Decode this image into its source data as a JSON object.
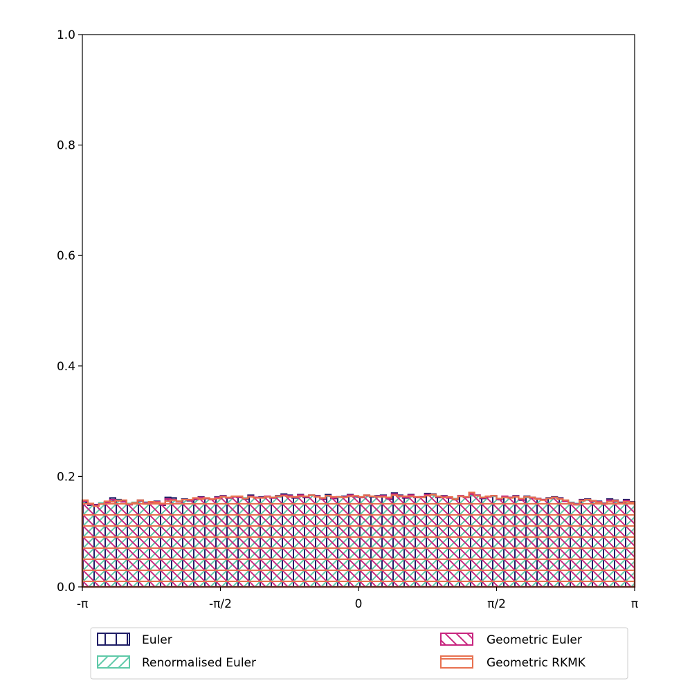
{
  "chart_data": {
    "type": "histogram",
    "title": "",
    "xlabel": "",
    "ylabel": "",
    "xlim": [
      -3.14159,
      3.14159
    ],
    "ylim": [
      0,
      1.0
    ],
    "grid": false,
    "xticks": [
      {
        "value": -3.14159,
        "label": "-π"
      },
      {
        "value": -1.5708,
        "label": "-π/2"
      },
      {
        "value": 0,
        "label": "0"
      },
      {
        "value": 1.5708,
        "label": "π/2"
      },
      {
        "value": 3.14159,
        "label": "π"
      }
    ],
    "yticks": [
      {
        "value": 0.0,
        "label": "0.0"
      },
      {
        "value": 0.2,
        "label": "0.2"
      },
      {
        "value": 0.4,
        "label": "0.4"
      },
      {
        "value": 0.6,
        "label": "0.6"
      },
      {
        "value": 0.8,
        "label": "0.8"
      },
      {
        "value": 1.0,
        "label": "1.0"
      }
    ],
    "bins": 100,
    "legend": {
      "placement": "below plot",
      "columns": 2
    },
    "series": [
      {
        "name": "Euler",
        "color": "#1f1d66",
        "hatch": "vertical",
        "values": [
          0.153,
          0.148,
          0.149,
          0.151,
          0.153,
          0.161,
          0.158,
          0.155,
          0.149,
          0.151,
          0.157,
          0.153,
          0.152,
          0.155,
          0.148,
          0.162,
          0.161,
          0.155,
          0.159,
          0.156,
          0.158,
          0.163,
          0.16,
          0.158,
          0.163,
          0.165,
          0.161,
          0.163,
          0.162,
          0.159,
          0.166,
          0.162,
          0.163,
          0.164,
          0.161,
          0.165,
          0.168,
          0.166,
          0.161,
          0.167,
          0.162,
          0.166,
          0.165,
          0.159,
          0.167,
          0.16,
          0.163,
          0.164,
          0.167,
          0.163,
          0.162,
          0.166,
          0.163,
          0.165,
          0.166,
          0.159,
          0.17,
          0.166,
          0.161,
          0.167,
          0.162,
          0.163,
          0.169,
          0.168,
          0.162,
          0.165,
          0.161,
          0.158,
          0.165,
          0.162,
          0.166,
          0.166,
          0.16,
          0.163,
          0.165,
          0.158,
          0.164,
          0.162,
          0.165,
          0.157,
          0.164,
          0.162,
          0.16,
          0.158,
          0.161,
          0.163,
          0.161,
          0.155,
          0.152,
          0.149,
          0.158,
          0.159,
          0.156,
          0.155,
          0.151,
          0.159,
          0.157,
          0.153,
          0.158,
          0.154
        ]
      },
      {
        "name": "Renormalised Euler",
        "color": "#5ec9a8",
        "hatch": "diagonal-forward",
        "values": [
          0.156,
          0.15,
          0.147,
          0.152,
          0.154,
          0.156,
          0.157,
          0.154,
          0.151,
          0.153,
          0.155,
          0.153,
          0.151,
          0.154,
          0.15,
          0.157,
          0.158,
          0.154,
          0.158,
          0.157,
          0.16,
          0.161,
          0.16,
          0.159,
          0.162,
          0.164,
          0.161,
          0.163,
          0.163,
          0.161,
          0.163,
          0.162,
          0.162,
          0.164,
          0.162,
          0.163,
          0.165,
          0.165,
          0.163,
          0.165,
          0.164,
          0.166,
          0.164,
          0.161,
          0.164,
          0.162,
          0.162,
          0.163,
          0.165,
          0.164,
          0.163,
          0.165,
          0.164,
          0.164,
          0.165,
          0.162,
          0.167,
          0.165,
          0.163,
          0.165,
          0.163,
          0.162,
          0.166,
          0.166,
          0.163,
          0.164,
          0.162,
          0.16,
          0.164,
          0.163,
          0.165,
          0.166,
          0.162,
          0.163,
          0.164,
          0.16,
          0.163,
          0.162,
          0.163,
          0.159,
          0.162,
          0.161,
          0.16,
          0.158,
          0.16,
          0.161,
          0.16,
          0.156,
          0.153,
          0.151,
          0.156,
          0.157,
          0.155,
          0.154,
          0.152,
          0.155,
          0.154,
          0.152,
          0.155,
          0.153
        ]
      },
      {
        "name": "Geometric Euler",
        "color": "#c8257f",
        "hatch": "diagonal-back",
        "values": [
          0.155,
          0.149,
          0.148,
          0.15,
          0.153,
          0.158,
          0.156,
          0.154,
          0.149,
          0.152,
          0.156,
          0.152,
          0.152,
          0.154,
          0.149,
          0.159,
          0.158,
          0.154,
          0.158,
          0.157,
          0.159,
          0.162,
          0.16,
          0.158,
          0.162,
          0.164,
          0.161,
          0.163,
          0.162,
          0.16,
          0.164,
          0.162,
          0.162,
          0.164,
          0.161,
          0.164,
          0.166,
          0.165,
          0.162,
          0.166,
          0.163,
          0.166,
          0.164,
          0.16,
          0.165,
          0.161,
          0.163,
          0.163,
          0.166,
          0.164,
          0.162,
          0.165,
          0.164,
          0.164,
          0.165,
          0.16,
          0.168,
          0.165,
          0.162,
          0.166,
          0.162,
          0.163,
          0.167,
          0.167,
          0.163,
          0.164,
          0.161,
          0.159,
          0.165,
          0.162,
          0.168,
          0.166,
          0.161,
          0.163,
          0.165,
          0.159,
          0.164,
          0.162,
          0.164,
          0.158,
          0.163,
          0.161,
          0.16,
          0.158,
          0.16,
          0.162,
          0.16,
          0.155,
          0.152,
          0.15,
          0.157,
          0.158,
          0.155,
          0.154,
          0.151,
          0.157,
          0.155,
          0.152,
          0.156,
          0.153
        ]
      },
      {
        "name": "Geometric RKMK",
        "color": "#e8704f",
        "hatch": "horizontal",
        "values": [
          0.157,
          0.151,
          0.146,
          0.15,
          0.155,
          0.154,
          0.156,
          0.157,
          0.15,
          0.152,
          0.157,
          0.15,
          0.154,
          0.153,
          0.151,
          0.155,
          0.157,
          0.155,
          0.158,
          0.158,
          0.161,
          0.159,
          0.161,
          0.159,
          0.16,
          0.163,
          0.162,
          0.164,
          0.164,
          0.16,
          0.163,
          0.161,
          0.161,
          0.163,
          0.162,
          0.164,
          0.165,
          0.163,
          0.163,
          0.164,
          0.164,
          0.166,
          0.163,
          0.161,
          0.165,
          0.163,
          0.163,
          0.162,
          0.164,
          0.165,
          0.163,
          0.166,
          0.164,
          0.163,
          0.163,
          0.162,
          0.166,
          0.164,
          0.164,
          0.164,
          0.163,
          0.162,
          0.165,
          0.167,
          0.164,
          0.162,
          0.163,
          0.159,
          0.164,
          0.163,
          0.171,
          0.165,
          0.162,
          0.164,
          0.165,
          0.16,
          0.162,
          0.161,
          0.163,
          0.16,
          0.163,
          0.162,
          0.159,
          0.157,
          0.16,
          0.162,
          0.159,
          0.157,
          0.151,
          0.149,
          0.156,
          0.158,
          0.156,
          0.153,
          0.15,
          0.154,
          0.156,
          0.151,
          0.154,
          0.153
        ]
      }
    ]
  }
}
